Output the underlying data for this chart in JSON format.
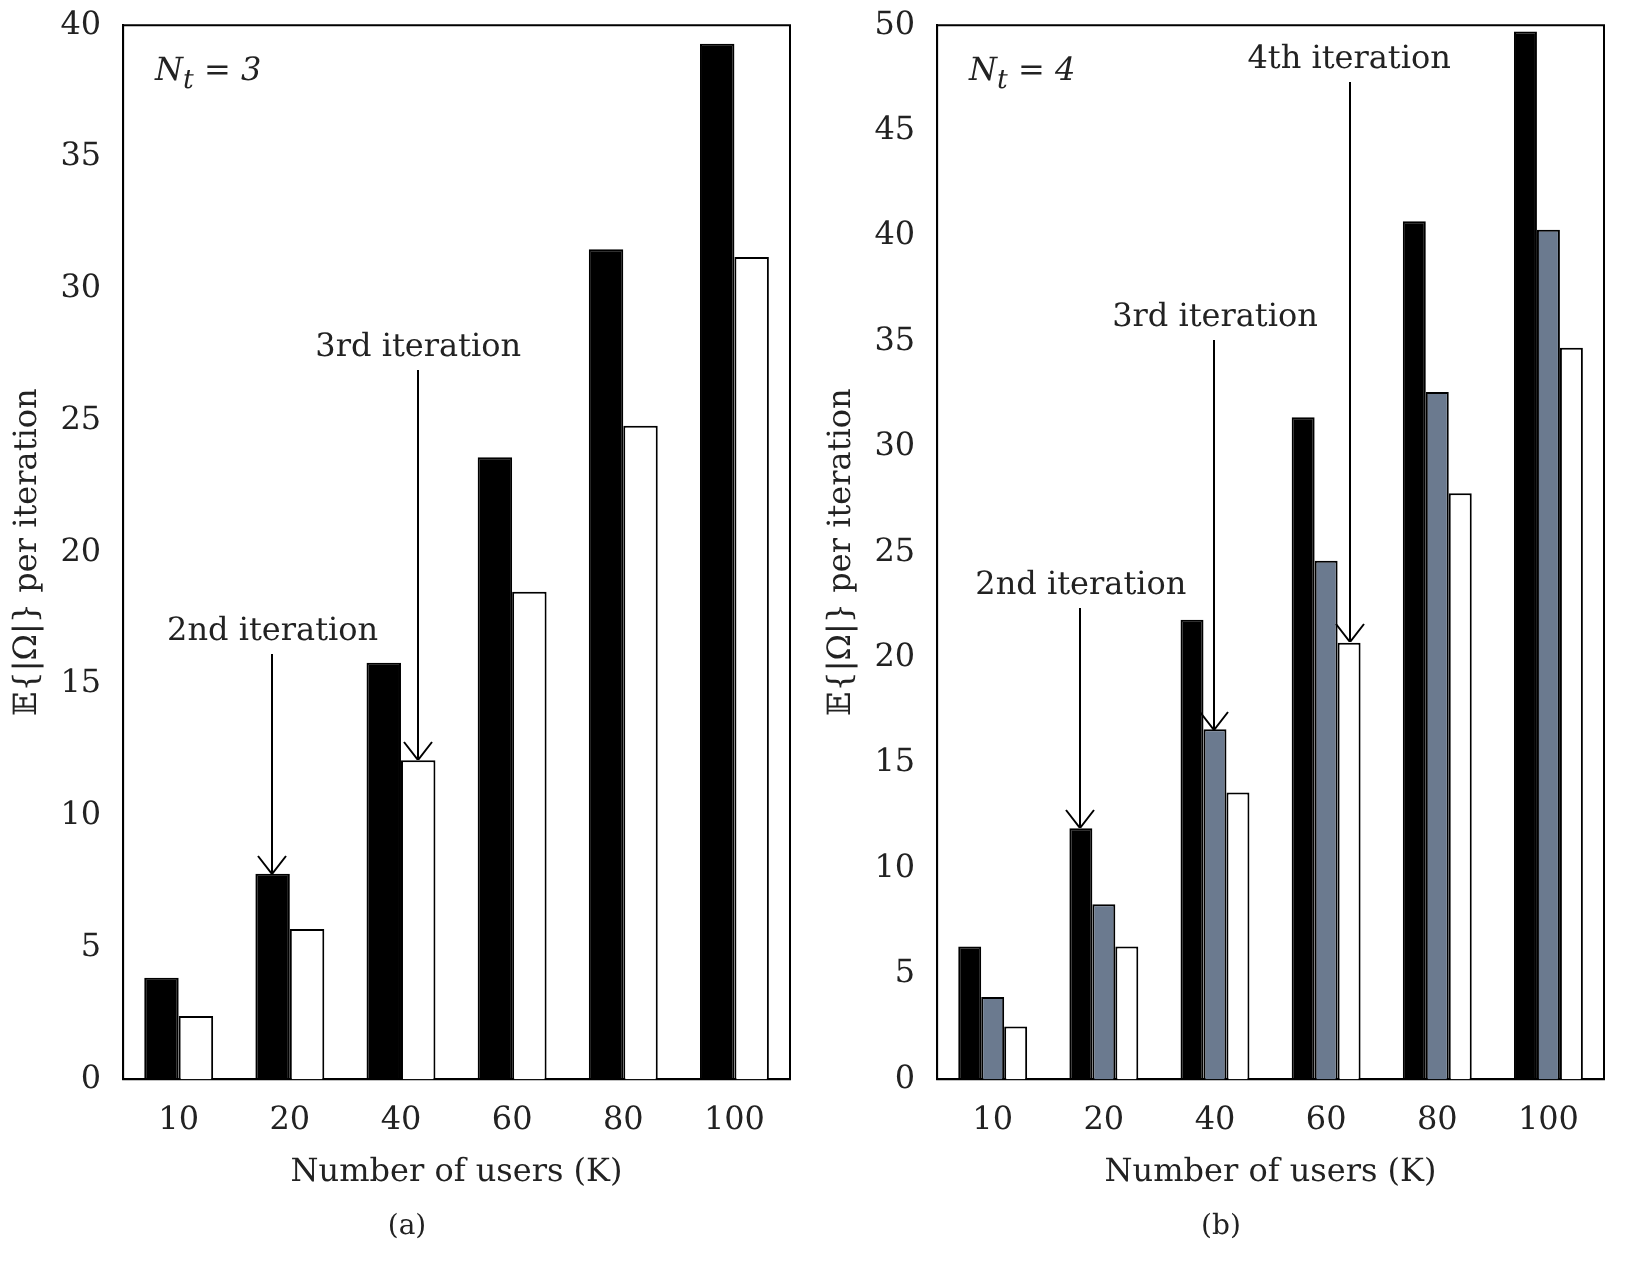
{
  "chart_data": [
    {
      "type": "bar",
      "categories": [
        "10",
        "20",
        "40",
        "60",
        "80",
        "100"
      ],
      "series": [
        {
          "color": "#000000",
          "values": [
            3.85,
            7.8,
            15.8,
            23.6,
            31.5,
            39.3
          ]
        },
        {
          "color": "#ffffff",
          "values": [
            2.4,
            5.7,
            12.1,
            18.5,
            24.8,
            31.2
          ]
        }
      ],
      "ylim": [
        0,
        40
      ],
      "yticks": [
        0,
        5,
        10,
        15,
        20,
        25,
        30,
        35,
        40
      ],
      "xlabel": "Number of users (K)",
      "ylabel": "𝔼{|Ω|} per iteration",
      "grid": false,
      "legend": false,
      "annotations": [
        "N$_{t}$ = 3",
        "(a)",
        {
          "text": "2nd iteration",
          "y": 7.8
        },
        {
          "text": "3rd iteration",
          "y": 12.1
        }
      ]
    },
    {
      "type": "bar",
      "categories": [
        "10",
        "20",
        "40",
        "60",
        "80",
        "100"
      ],
      "series": [
        {
          "color": "#000000",
          "values": [
            6.3,
            11.9,
            21.8,
            31.4,
            40.7,
            49.7
          ]
        },
        {
          "color": "#6b7a8f",
          "values": [
            3.9,
            8.3,
            16.6,
            24.6,
            32.6,
            40.3
          ]
        },
        {
          "color": "#ffffff",
          "values": [
            2.5,
            6.3,
            13.6,
            20.7,
            27.8,
            34.7
          ]
        }
      ],
      "ylim": [
        0,
        50
      ],
      "yticks": [
        0,
        5,
        10,
        15,
        20,
        25,
        30,
        35,
        40,
        45,
        50
      ],
      "xlabel": "Number of users (K)",
      "ylabel": "𝔼{|Ω|} per iteration",
      "grid": false,
      "legend": false,
      "annotations": [
        "N$_{t}$ = 4",
        "(b)",
        {
          "text": "2nd iteration",
          "y": 11.9
        },
        {
          "text": "3rd iteration",
          "y": 16.6
        },
        {
          "text": "4th iteration",
          "y": 20.7
        }
      ]
    }
  ]
}
